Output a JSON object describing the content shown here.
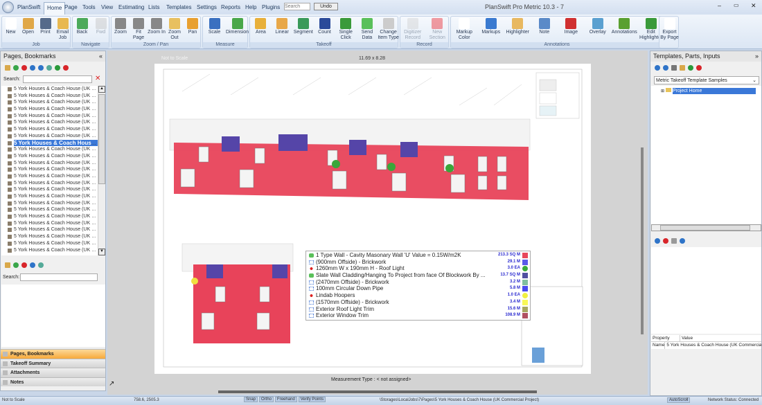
{
  "app": {
    "title": "PlanSwift Pro Metric 10.3 - 7",
    "menu": [
      "PlanSwift",
      "Home",
      "Page",
      "Tools",
      "View",
      "Estimating",
      "Lists",
      "Templates",
      "Settings",
      "Reports",
      "Help",
      "Plugins"
    ],
    "active_tab": "Home",
    "search_placeholder": "Search",
    "undo_label": "Undo",
    "window_controls": [
      "minimize-icon",
      "restore-icon",
      "close-icon"
    ]
  },
  "ribbon": {
    "groups": [
      {
        "label": "Job",
        "buttons": [
          "New",
          "Open",
          "Print",
          "Email Job"
        ]
      },
      {
        "label": "Navigate",
        "buttons": [
          "Back",
          "Fwd"
        ]
      },
      {
        "label": "Zoom / Pan",
        "buttons": [
          "Zoom",
          "Fit Page",
          "Zoom In",
          "Zoom Out",
          "Pan"
        ]
      },
      {
        "label": "Measure",
        "buttons": [
          "Scale",
          "Dimension"
        ]
      },
      {
        "label": "Takeoff",
        "buttons": [
          "Area",
          "Linear",
          "Segment",
          "Count",
          "Single Click",
          "Send Data",
          "Change Item Type"
        ]
      },
      {
        "label": "Record",
        "buttons": [
          "Digitizer Record",
          "New Section"
        ]
      },
      {
        "label": "Annotations",
        "buttons": [
          "Markup Color",
          "Markups",
          "Highlighter",
          "Note",
          "Image",
          "Overlay",
          "Annotations",
          "Edit Highlighter"
        ]
      },
      {
        "label": "",
        "buttons": [
          "Export By Page"
        ]
      }
    ]
  },
  "left": {
    "title": "Pages, Bookmarks",
    "search_label": "Search:",
    "page_item": "5 York Houses & Coach House (UK Commercial Project)",
    "selected_index": 8,
    "lower_search_label": "Search:",
    "tabs": [
      "Pages, Bookmarks",
      "Takeoff Summary",
      "Attachments",
      "Notes"
    ],
    "active_tab": "Pages, Bookmarks"
  },
  "canvas": {
    "scale_label": "Not to Scale",
    "page_size": "11.69 x 8.28",
    "measurement_type": "Measurement Type : < not assigned>"
  },
  "legend": [
    {
      "icon": "area",
      "name": "1 Type Wall - Cavity Masonary Wall 'U' Value = 0.15W/m2K",
      "qty": "213.3 SQ M",
      "color": "#e8485c"
    },
    {
      "icon": "linear",
      "name": "(900mm Offside) - Brickwork",
      "qty": "29.1 M",
      "color": "#5a5ae8"
    },
    {
      "icon": "count",
      "name": "1260mm W x 190mm H - Roof Light",
      "qty": "3.0 EA",
      "color": "#3aaa3a"
    },
    {
      "icon": "area",
      "name": "Slate Wall Cladding/Hanging To Project from face Of Blockwork By ...",
      "qty": "13.7 SQ M",
      "color": "#5050a0"
    },
    {
      "icon": "linear",
      "name": "(2470mm Offside) - Brickwork",
      "qty": "3.2 M",
      "color": "#80c0a0"
    },
    {
      "icon": "linear",
      "name": "100mm Circular Down Pipe",
      "qty": "5.8 M",
      "color": "#4a4af0"
    },
    {
      "icon": "count",
      "name": "Lindab Hoopers",
      "qty": "1.0 EA",
      "color": "#f0f040"
    },
    {
      "icon": "linear",
      "name": "(1570mm Offside) - Brickwork",
      "qty": "3.4 M",
      "color": "#f8f858"
    },
    {
      "icon": "linear",
      "name": "Exterior Roof Light Trim",
      "qty": "15.6 M",
      "color": "#a8a860"
    },
    {
      "icon": "linear",
      "name": "Exterior Window Trim",
      "qty": "108.9 M",
      "color": "#b05060"
    }
  ],
  "right": {
    "title": "Templates, Parts, Inputs",
    "template_select": "Metric Takeoff Template Samples",
    "tree_item": "Project Home",
    "prop_headers": [
      "Property",
      "Value"
    ],
    "prop_rows": [
      [
        "Name",
        "5 York Houses & Coach House (UK Commercial Project)"
      ]
    ]
  },
  "status": {
    "scale": "Not to Scale",
    "coords": "758.6, 2505.3",
    "toggles": [
      "Snap",
      "Ortho",
      "Freehand",
      "Verify Points"
    ],
    "path": "\\Storages\\LocalJobs\\7\\Pages\\5 York Houses & Coach House (UK Commercial Project)",
    "autoscroll": "AutoScroll",
    "network": "Network Status: Connected"
  }
}
